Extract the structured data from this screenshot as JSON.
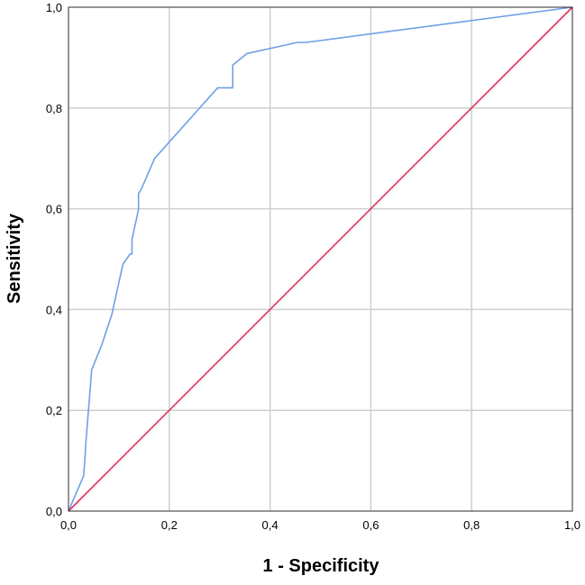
{
  "chart_data": {
    "type": "line",
    "title": "",
    "xlabel": "1 - Specificity",
    "ylabel": "Sensitivity",
    "xlim": [
      0,
      1
    ],
    "ylim": [
      0,
      1
    ],
    "grid": true,
    "legend": "none",
    "x_ticks": [
      0,
      0.2,
      0.4,
      0.6,
      0.8,
      1.0
    ],
    "y_ticks": [
      0,
      0.2,
      0.4,
      0.6,
      0.8,
      1.0
    ],
    "x_tick_labels": [
      "0,0",
      "0,2",
      "0,4",
      "0,6",
      "0,8",
      "1,0"
    ],
    "y_tick_labels": [
      "0,0",
      "0,2",
      "0,4",
      "0,6",
      "0,8",
      "1,0"
    ],
    "series": [
      {
        "color": "#6fa0e6",
        "x": [
          0.0,
          0.03,
          0.033,
          0.034,
          0.046,
          0.066,
          0.086,
          0.108,
          0.122,
          0.126,
          0.126,
          0.135,
          0.139,
          0.139,
          0.145,
          0.171,
          0.296,
          0.326,
          0.326,
          0.354,
          0.454,
          0.471,
          1.0
        ],
        "y": [
          0.0,
          0.07,
          0.11,
          0.13,
          0.28,
          0.33,
          0.39,
          0.49,
          0.51,
          0.51,
          0.54,
          0.58,
          0.6,
          0.63,
          0.64,
          0.7,
          0.84,
          0.84,
          0.885,
          0.908,
          0.93,
          0.93,
          1.0
        ]
      },
      {
        "color": "#e0335a",
        "x": [
          0.0,
          1.0
        ],
        "y": [
          0.0,
          1.0
        ]
      }
    ]
  },
  "colors": {
    "grid": "#cfcfcf",
    "frame": "#2b2b2b",
    "roc_curve": "#6fa0e6",
    "reference_line": "#e0335a"
  }
}
